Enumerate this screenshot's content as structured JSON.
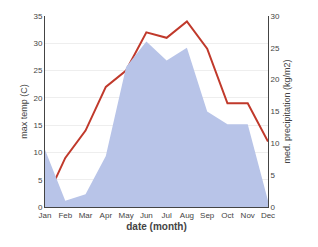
{
  "chart_data": {
    "type": "line",
    "xlabel": "date (month)",
    "ylabel": "max temp (C)",
    "y2label": "med. precipitation (kg/m2)",
    "categories": [
      "Jan",
      "Feb",
      "Mar",
      "Apr",
      "May",
      "Jun",
      "Jul",
      "Aug",
      "Sep",
      "Oct",
      "Nov",
      "Dec"
    ],
    "series": [
      {
        "type": "area",
        "axis": "y2",
        "color": "#b8c4e8",
        "values": [
          9,
          1,
          2,
          8,
          22,
          26,
          23,
          25,
          15,
          13,
          13,
          1
        ]
      },
      {
        "type": "line",
        "color": "#c0392b",
        "values": [
          1,
          9,
          14,
          22,
          25,
          32,
          31,
          34,
          29,
          19,
          19,
          12
        ]
      }
    ],
    "ylim": [
      0,
      35
    ],
    "yticks": [
      0,
      5,
      10,
      15,
      20,
      25,
      30,
      35
    ],
    "y2lim": [
      0,
      30
    ],
    "y2ticks": [
      0,
      5,
      10,
      15,
      20,
      25,
      30
    ],
    "grid": true
  }
}
